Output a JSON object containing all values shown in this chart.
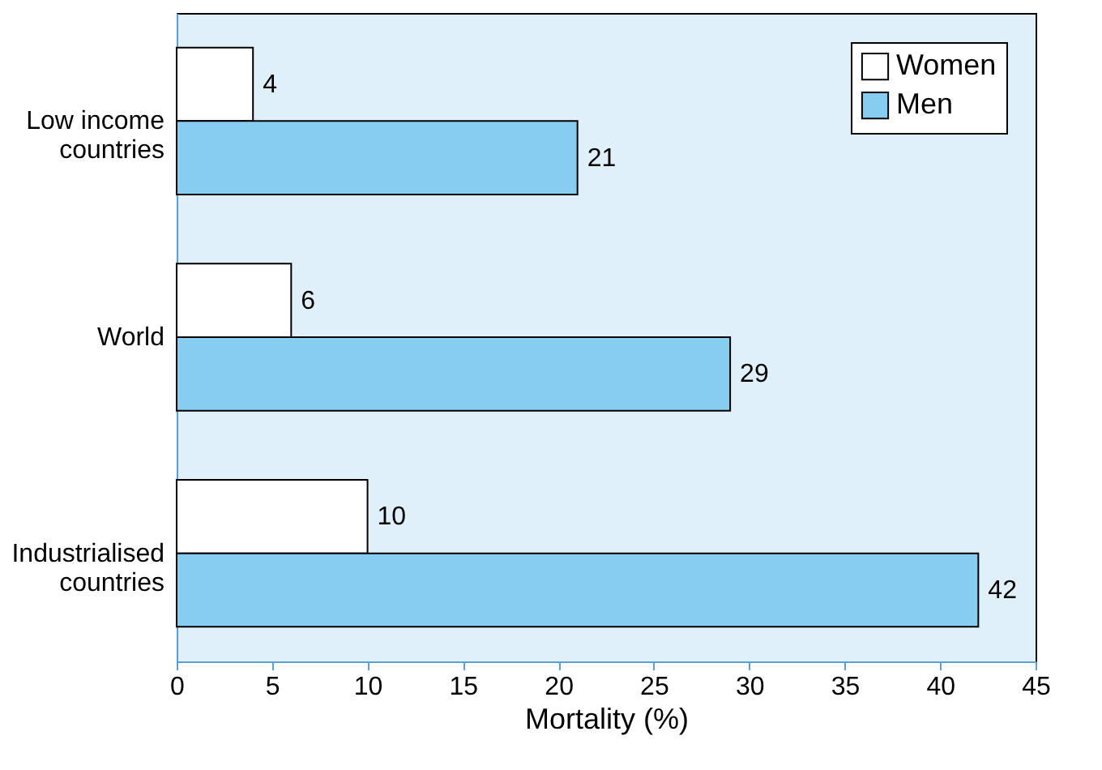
{
  "chart_data": {
    "type": "bar",
    "orientation": "horizontal",
    "xlabel": "Mortality (%)",
    "categories": [
      "Low income countries",
      "World",
      "Industrialised countries"
    ],
    "series": [
      {
        "name": "Women",
        "color": "#ffffff",
        "values": [
          4,
          6,
          10
        ]
      },
      {
        "name": "Men",
        "color": "#87cdf2",
        "values": [
          21,
          29,
          42
        ]
      }
    ],
    "xlim": [
      0,
      45
    ],
    "xticks": [
      0,
      5,
      10,
      15,
      20,
      25,
      30,
      35,
      40,
      45
    ],
    "data_labels": true,
    "legend": "top right",
    "grid": false
  }
}
